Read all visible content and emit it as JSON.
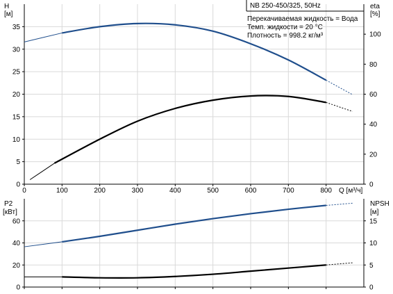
{
  "chart_data": [
    {
      "type": "line",
      "title": "NB 250-450/325, 50Hz",
      "notes": [
        "Перекачиваемая жидкость = Вода",
        "Темп. жидкости = 20 °C",
        "Плотность = 998.2 кг/м³"
      ],
      "xlabel": "Q [м³/ч]",
      "y_left_label": [
        "H",
        "[м]"
      ],
      "y_right_label": [
        "eta",
        "[%]"
      ],
      "xlim": [
        0,
        900
      ],
      "x_ticks": [
        0,
        100,
        200,
        300,
        400,
        500,
        600,
        700,
        800
      ],
      "y_left_lim": [
        0,
        40
      ],
      "y_left_ticks": [
        0,
        5,
        10,
        15,
        20,
        25,
        30,
        35
      ],
      "y_right_lim": [
        0,
        120
      ],
      "y_right_ticks": [
        0,
        20,
        40,
        60,
        80,
        100
      ],
      "grid": true,
      "series": [
        {
          "color": "#1f4e8c",
          "axis": "left",
          "x": [
            0,
            100,
            200,
            300,
            400,
            500,
            600,
            700,
            800,
            870
          ],
          "y": [
            31.6,
            33.6,
            35.0,
            35.7,
            35.4,
            34.0,
            31.2,
            27.6,
            23.1,
            19.9
          ]
        },
        {
          "color": "#000000",
          "axis": "right",
          "x": [
            15,
            80,
            200,
            300,
            400,
            500,
            600,
            700,
            800,
            870
          ],
          "y": [
            3,
            14,
            30,
            42,
            50.5,
            56,
            58.8,
            58.5,
            54.5,
            48.5
          ]
        }
      ]
    },
    {
      "type": "line",
      "xlim": [
        0,
        900
      ],
      "y_left_label": [
        "P2",
        "[кВт]"
      ],
      "y_right_label": [
        "NPSH",
        "[м]"
      ],
      "y_left_lim": [
        0,
        80
      ],
      "y_left_ticks": [
        0,
        20,
        40,
        60
      ],
      "y_right_lim": [
        0,
        20
      ],
      "y_right_ticks": [
        0,
        5,
        10,
        15
      ],
      "grid": true,
      "series": [
        {
          "color": "#1f4e8c",
          "axis": "left",
          "x": [
            0,
            100,
            200,
            300,
            400,
            500,
            600,
            700,
            800,
            870
          ],
          "y": [
            36.5,
            41,
            46,
            51.5,
            57,
            62,
            66.5,
            70.5,
            74,
            76
          ]
        },
        {
          "color": "#000000",
          "axis": "right",
          "x": [
            0,
            100,
            200,
            300,
            400,
            500,
            600,
            700,
            800,
            870
          ],
          "y": [
            2.3,
            2.3,
            2.1,
            2.1,
            2.4,
            2.9,
            3.6,
            4.3,
            5.0,
            5.5
          ]
        }
      ]
    }
  ]
}
